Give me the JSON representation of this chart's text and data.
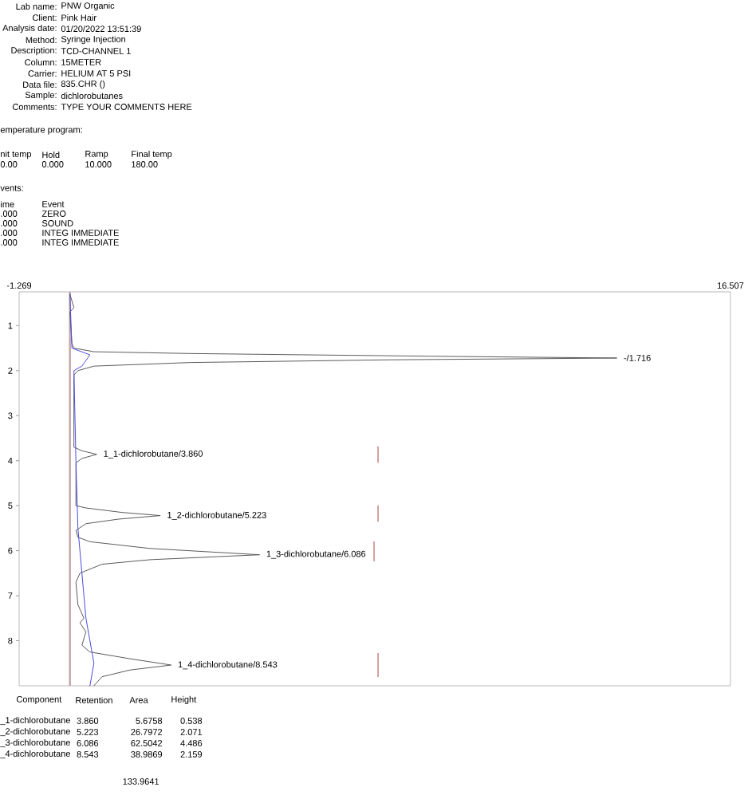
{
  "chart_data": {
    "type": "line",
    "xlim": [
      -1.269,
      16.507
    ],
    "xticks": [
      -1.269,
      16.507
    ],
    "ylim": [
      9,
      0.25
    ],
    "yticks": [
      1,
      2,
      3,
      4,
      5,
      6,
      7,
      8
    ],
    "series": [
      {
        "color": "#5a5a5a",
        "x": [
          0.0,
          0.1,
          0.0,
          0.05,
          0.1,
          0.6,
          3.0,
          9.0,
          13.67,
          8.0,
          3.0,
          0.6,
          0.2,
          0.1,
          0.1,
          0.3,
          0.67,
          0.3,
          0.15,
          0.15,
          0.4,
          1.3,
          2.26,
          1.2,
          0.4,
          0.15,
          0.2,
          0.5,
          2.0,
          4.74,
          2.0,
          0.8,
          0.25,
          0.15,
          0.2,
          0.35,
          0.25,
          0.4,
          0.3,
          0.5,
          1.5,
          2.53,
          1.5,
          0.8,
          0.6
        ],
        "values": [
          0.3,
          0.6,
          0.7,
          1.4,
          1.5,
          1.58,
          1.62,
          1.68,
          1.72,
          1.76,
          1.82,
          1.9,
          2.0,
          2.1,
          3.7,
          3.78,
          3.86,
          3.95,
          4.05,
          5.0,
          5.05,
          5.15,
          5.22,
          5.3,
          5.4,
          5.55,
          5.7,
          5.8,
          5.95,
          6.09,
          6.2,
          6.3,
          6.5,
          6.7,
          7.2,
          7.5,
          7.6,
          7.8,
          8.1,
          8.25,
          8.4,
          8.54,
          8.65,
          8.8,
          9.0
        ]
      },
      {
        "color": "#4a4ae0",
        "x": [
          0.0,
          0.05,
          0.5,
          0.3,
          0.1,
          0.15,
          0.2,
          0.3,
          0.4,
          0.6,
          0.5
        ],
        "values": [
          0.3,
          1.5,
          1.65,
          1.9,
          2.0,
          4.0,
          5.5,
          6.5,
          7.5,
          8.5,
          9.0
        ]
      },
      {
        "color": "#b04040",
        "x": [
          7.7,
          7.7
        ],
        "values": [
          3.69,
          4.04
        ]
      },
      {
        "color": "#b04040",
        "x": [
          7.7,
          7.7
        ],
        "values": [
          5.0,
          5.35
        ]
      },
      {
        "color": "#b04040",
        "x": [
          7.6,
          7.6
        ],
        "values": [
          5.8,
          6.23
        ]
      },
      {
        "color": "#b04040",
        "x": [
          7.7,
          7.7
        ],
        "values": [
          8.28,
          8.8
        ]
      }
    ],
    "ref_lines": [
      {
        "axis": "x",
        "value": 0,
        "color": "#c4a4a4"
      }
    ],
    "annotations": [
      "Lab name:",
      "PNW Organic",
      "Client:",
      "Pink Hair",
      "Analysis date:",
      "01/20/2022 13:51:39",
      "Method:",
      "Syringe Injection",
      "Description:",
      "TCD-CHANNEL 1",
      "Column:",
      "15METER",
      "Carrier:",
      "HELIUM AT 5 PSI",
      "Data file:",
      "835.CHR ()",
      "Sample:",
      "dichlorobutanes",
      "Comments:",
      "TYPE YOUR COMMENTS HERE",
      "emperature program:",
      "nit temp",
      "Hold",
      "Ramp",
      "Final temp",
      "0.00",
      "0.000",
      "10.000",
      "180.00",
      "vents:",
      "ime",
      "Event",
      ".000",
      "ZERO",
      ".000",
      "SOUND",
      ".000",
      "INTEG IMMEDIATE",
      ".000",
      "INTEG IMMEDIATE",
      "Component",
      "Retention",
      "Area",
      "Height",
      "_1-dichlorobutane",
      "3.860",
      "5.6758",
      "0.538",
      "_2-dichlorobutane",
      "5.223",
      "26.7972",
      "2.071",
      "_3-dichlorobutane",
      "6.086",
      "62.5042",
      "4.486",
      "_4-dichlorobutane",
      "8.543",
      "38.9869",
      "2.159",
      "133.9641",
      {
        "text": "-/1.716",
        "x": 13.67,
        "y": 1.716
      },
      {
        "text": "1_1-dichlorobutane/3.860",
        "x": 0.67,
        "y": 3.86
      },
      {
        "text": "1_2-dichlorobutane/5.223",
        "x": 2.26,
        "y": 5.223
      },
      {
        "text": "1_3-dichlorobutane/6.086",
        "x": 4.74,
        "y": 6.086
      },
      {
        "text": "1_4-dichlorobutane/8.543",
        "x": 2.53,
        "y": 8.543
      }
    ]
  }
}
